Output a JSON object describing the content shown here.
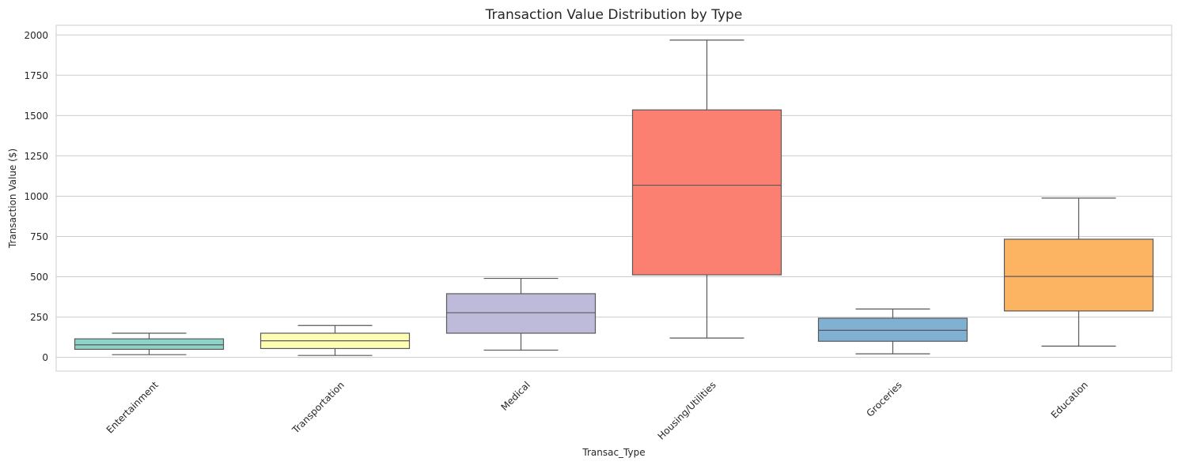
{
  "chart_data": {
    "type": "box",
    "title": "Transaction Value Distribution by Type",
    "xlabel": "Transac_Type",
    "ylabel": "Transaction Value ($)",
    "ylim": [
      -85,
      2060
    ],
    "yticks": [
      0,
      250,
      500,
      750,
      1000,
      1250,
      1500,
      1750,
      2000
    ],
    "grid": "horizontal",
    "categories": [
      "Entertainment",
      "Transportation",
      "Medical",
      "Housing/Utilities",
      "Groceries",
      "Education"
    ],
    "boxes": [
      {
        "category": "Entertainment",
        "min": 17,
        "q1": 50,
        "median": 78,
        "q3": 115,
        "max": 150,
        "color": "#8DD3C7"
      },
      {
        "category": "Transportation",
        "min": 12,
        "q1": 55,
        "median": 103,
        "q3": 150,
        "max": 198,
        "color": "#FFFFB3"
      },
      {
        "category": "Medical",
        "min": 45,
        "q1": 150,
        "median": 277,
        "q3": 395,
        "max": 490,
        "color": "#BEBADA"
      },
      {
        "category": "Housing/Utilities",
        "min": 120,
        "q1": 512,
        "median": 1068,
        "q3": 1535,
        "max": 1968,
        "color": "#FB8072"
      },
      {
        "category": "Groceries",
        "min": 22,
        "q1": 100,
        "median": 168,
        "q3": 243,
        "max": 300,
        "color": "#80B1D3"
      },
      {
        "category": "Education",
        "min": 70,
        "q1": 288,
        "median": 502,
        "q3": 733,
        "max": 988,
        "color": "#FDB462"
      }
    ]
  }
}
